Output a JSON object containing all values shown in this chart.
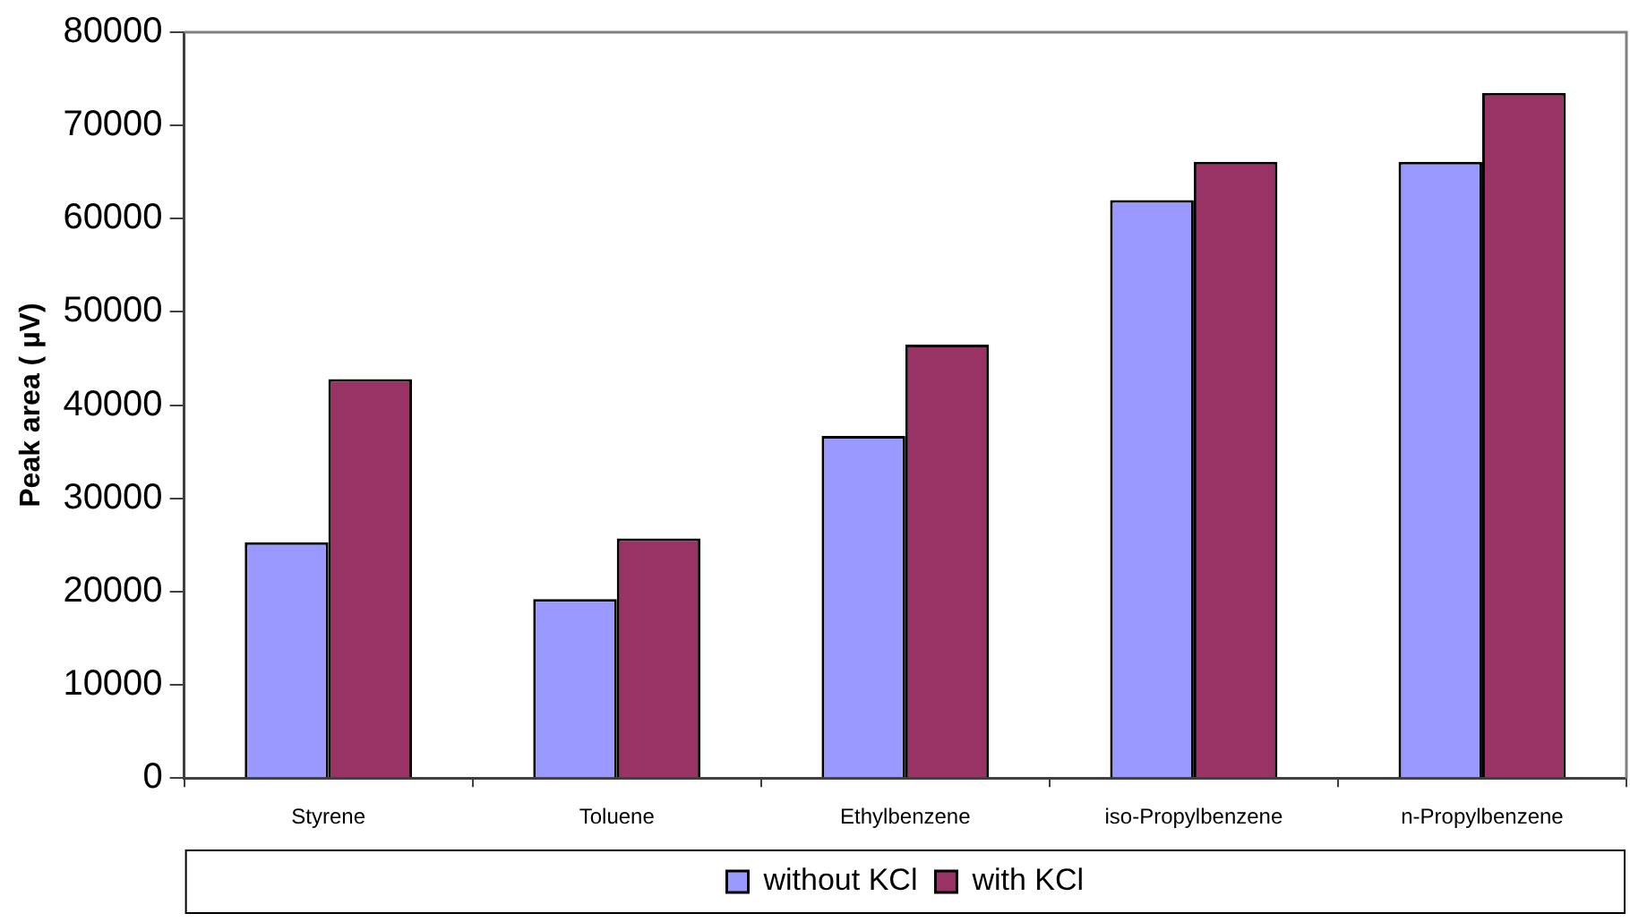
{
  "chart_data": {
    "type": "bar",
    "ylabel": "Peak area ( µV)",
    "categories": [
      "Styrene",
      "Toluene",
      "Ethylbenzene",
      "iso-Propylbenzene",
      "n-Propylbenzene"
    ],
    "series": [
      {
        "name": "without KCl",
        "color": "#9999ff",
        "values": [
          25300,
          19200,
          36700,
          62000,
          66100
        ]
      },
      {
        "name": "with KCl",
        "color": "#993366",
        "values": [
          42800,
          25700,
          46500,
          66100,
          73500
        ]
      }
    ],
    "ylim": [
      0,
      80000
    ],
    "yticks": [
      0,
      10000,
      20000,
      30000,
      40000,
      50000,
      60000,
      70000,
      80000
    ],
    "grid": false,
    "legend": "bottom"
  }
}
